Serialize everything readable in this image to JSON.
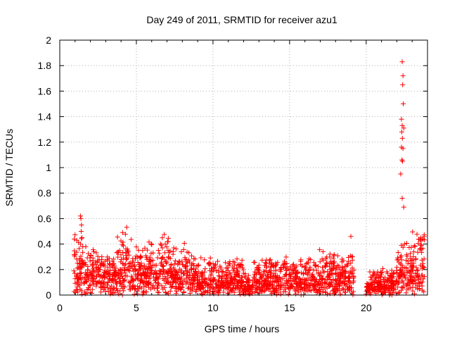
{
  "chart_data": {
    "type": "scatter",
    "title": "Day 249 of 2011, SRMTID for receiver azu1",
    "xlabel": "GPS time / hours",
    "ylabel": "SRMTID / TECUs",
    "xlim": [
      0,
      24
    ],
    "ylim": [
      0,
      2
    ],
    "xticks": [
      0,
      5,
      10,
      15,
      20
    ],
    "yticks": [
      0,
      0.2,
      0.4,
      0.6,
      0.8,
      1,
      1.2,
      1.4,
      1.6,
      1.8,
      2
    ],
    "xtick_labels": [
      "0",
      "5",
      "10",
      "15",
      "20"
    ],
    "ytick_labels": [
      "0",
      "0.2",
      "0.4",
      "0.6",
      "0.8",
      "1",
      "1.2",
      "1.4",
      "1.6",
      "1.8",
      "2"
    ],
    "grid": true,
    "marker": "+",
    "color": "#ff0000",
    "series": [
      {
        "name": "SRMTID",
        "profile": [
          [
            0.9,
            1.3,
            0.15,
            0.35
          ],
          [
            1.3,
            1.7,
            0.15,
            0.3
          ],
          [
            1.7,
            3.0,
            0.12,
            0.25
          ],
          [
            3.0,
            3.6,
            0.1,
            0.2
          ],
          [
            3.6,
            4.6,
            0.15,
            0.35
          ],
          [
            4.6,
            6.5,
            0.12,
            0.3
          ],
          [
            6.5,
            7.3,
            0.15,
            0.3
          ],
          [
            7.3,
            9.0,
            0.12,
            0.25
          ],
          [
            9.0,
            12.0,
            0.08,
            0.2
          ],
          [
            12.0,
            12.6,
            0.05,
            0.12
          ],
          [
            12.6,
            16.0,
            0.08,
            0.2
          ],
          [
            16.0,
            19.2,
            0.08,
            0.25
          ],
          [
            19.2,
            20.0,
            0.0,
            0.0
          ],
          [
            20.0,
            22.0,
            0.05,
            0.15
          ],
          [
            22.0,
            23.0,
            0.12,
            0.3
          ],
          [
            23.0,
            23.8,
            0.12,
            0.4
          ]
        ],
        "peaks": [
          [
            1.35,
            0.62
          ],
          [
            1.38,
            0.6
          ],
          [
            1.42,
            0.55
          ],
          [
            1.4,
            0.5
          ],
          [
            1.45,
            0.45
          ],
          [
            1.36,
            0.4
          ],
          [
            1.5,
            0.38
          ],
          [
            4.1,
            0.49
          ],
          [
            4.3,
            0.33
          ],
          [
            7.1,
            0.3
          ],
          [
            18.5,
            0.27
          ],
          [
            19.0,
            0.46
          ],
          [
            19.1,
            0.3
          ],
          [
            22.35,
            1.83
          ],
          [
            22.4,
            1.72
          ],
          [
            22.38,
            1.65
          ],
          [
            22.42,
            1.5
          ],
          [
            22.3,
            1.38
          ],
          [
            22.35,
            1.33
          ],
          [
            22.45,
            1.31
          ],
          [
            22.32,
            1.28
          ],
          [
            22.36,
            1.23
          ],
          [
            22.3,
            1.16
          ],
          [
            22.4,
            1.15
          ],
          [
            22.33,
            1.06
          ],
          [
            22.37,
            1.05
          ],
          [
            22.25,
            0.95
          ],
          [
            22.35,
            0.76
          ],
          [
            22.45,
            0.69
          ],
          [
            22.3,
            0.39
          ],
          [
            22.5,
            0.4
          ],
          [
            23.7,
            0.44
          ],
          [
            23.6,
            0.39
          ],
          [
            23.5,
            0.36
          ]
        ]
      }
    ]
  }
}
